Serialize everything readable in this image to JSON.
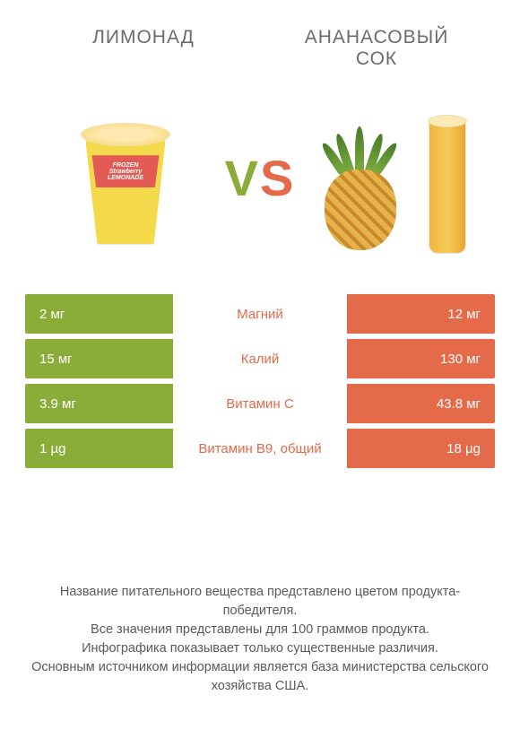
{
  "titles": {
    "left": "ЛИМОНАД",
    "right_line1": "АНАНАСОВЫЙ",
    "right_line2": "СОК"
  },
  "vs": {
    "v": "V",
    "s": "S"
  },
  "colors": {
    "left_product": "#8aad3a",
    "right_product": "#e46a4a",
    "nutrient_winner_left": "#8aad3a",
    "nutrient_winner_right": "#e46a4a",
    "row_text": "#ffffff",
    "page_bg": "#ffffff",
    "body_text": "#5a5a5a"
  },
  "lemonade_label": {
    "line1": "FROZEN",
    "line2": "Strawberry",
    "line3": "LEMONADE"
  },
  "comparison": {
    "type": "table",
    "rows": [
      {
        "left": "2 мг",
        "nutrient": "Магний",
        "right": "12 мг",
        "winner": "right"
      },
      {
        "left": "15 мг",
        "nutrient": "Калий",
        "right": "130 мг",
        "winner": "right"
      },
      {
        "left": "3.9 мг",
        "nutrient": "Витамин C",
        "right": "43.8 мг",
        "winner": "right"
      },
      {
        "left": "1 µg",
        "nutrient": "Витамин B9, общий",
        "right": "18 µg",
        "winner": "right"
      }
    ]
  },
  "footer": {
    "l1": "Название питательного вещества представлено цветом продукта-победителя.",
    "l2": "Все значения представлены для 100 граммов продукта.",
    "l3": "Инфографика показывает только существенные различия.",
    "l4": "Основным источником информации является база министерства сельского хозяйства США."
  }
}
